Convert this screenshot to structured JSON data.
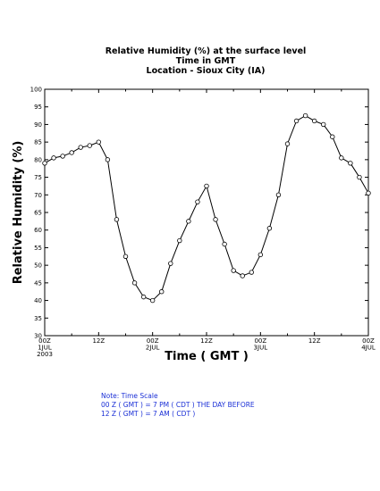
{
  "chart_data": {
    "type": "line",
    "title_lines": [
      "Relative Humidity (%) at the surface level",
      "Time in GMT",
      "Location - Sioux City (IA)"
    ],
    "xlabel": "Time ( GMT )",
    "ylabel": "Relative Humidity (%)",
    "ylim": [
      30,
      100
    ],
    "yticks": [
      30,
      35,
      40,
      45,
      50,
      55,
      60,
      65,
      70,
      75,
      80,
      85,
      90,
      95,
      100
    ],
    "xlim": [
      0,
      72
    ],
    "x_unit": "hours from 00Z 1JUL 2003",
    "xticks": [
      {
        "x": 0,
        "lines": [
          "00Z",
          "1JUL",
          "2003"
        ]
      },
      {
        "x": 12,
        "lines": [
          "12Z"
        ]
      },
      {
        "x": 24,
        "lines": [
          "00Z",
          "2JUL"
        ]
      },
      {
        "x": 36,
        "lines": [
          "12Z"
        ]
      },
      {
        "x": 48,
        "lines": [
          "00Z",
          "3JUL"
        ]
      },
      {
        "x": 60,
        "lines": [
          "12Z"
        ]
      },
      {
        "x": 72,
        "lines": [
          "00Z",
          "4JUL"
        ]
      }
    ],
    "series": [
      {
        "x": [
          0,
          2,
          4,
          6,
          8,
          10,
          12,
          14,
          16,
          18,
          20,
          22,
          24,
          26,
          28,
          30,
          32,
          34,
          36,
          38,
          40,
          42,
          44,
          46,
          48,
          50,
          52,
          54,
          56,
          58,
          60,
          62,
          64,
          66,
          68,
          70,
          72
        ],
        "values": [
          79,
          80.5,
          81,
          82,
          83.5,
          84,
          85,
          80,
          63,
          52.5,
          45,
          41,
          40,
          42.5,
          50.5,
          57,
          62.5,
          68,
          72.5,
          63,
          56,
          48.5,
          47,
          48,
          53,
          60.5,
          70,
          84.5,
          91,
          92.5,
          91,
          90,
          86.5,
          80.5,
          79,
          75,
          70.5
        ],
        "color": "#000000"
      }
    ],
    "grid": false
  },
  "note": {
    "lines": [
      "Note: Time Scale",
      "00 Z ( GMT ) = 7 PM ( CDT ) THE DAY BEFORE",
      "12 Z ( GMT ) = 7 AM ( CDT )"
    ],
    "color": "#1a2fd6"
  }
}
